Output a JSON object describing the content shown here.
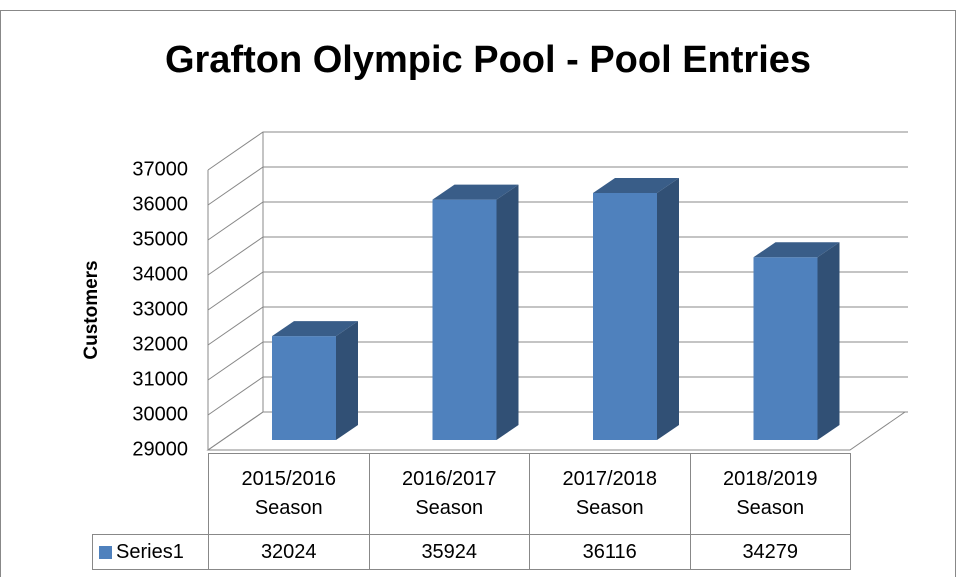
{
  "chart_data": {
    "type": "bar3d",
    "title": "Grafton Olympic Pool - Pool Entries",
    "ylabel": "Customers",
    "categories": [
      "2015/2016 Season",
      "2016/2017 Season",
      "2017/2018 Season",
      "2018/2019 Season"
    ],
    "series": [
      {
        "name": "Series1",
        "color": "#4f81bd",
        "values": [
          32024,
          35924,
          36116,
          34279
        ]
      }
    ],
    "ylim": [
      29000,
      37000
    ],
    "yticks": [
      29000,
      30000,
      31000,
      32000,
      33000,
      34000,
      35000,
      36000,
      37000
    ],
    "grid": true,
    "data_table": true
  }
}
